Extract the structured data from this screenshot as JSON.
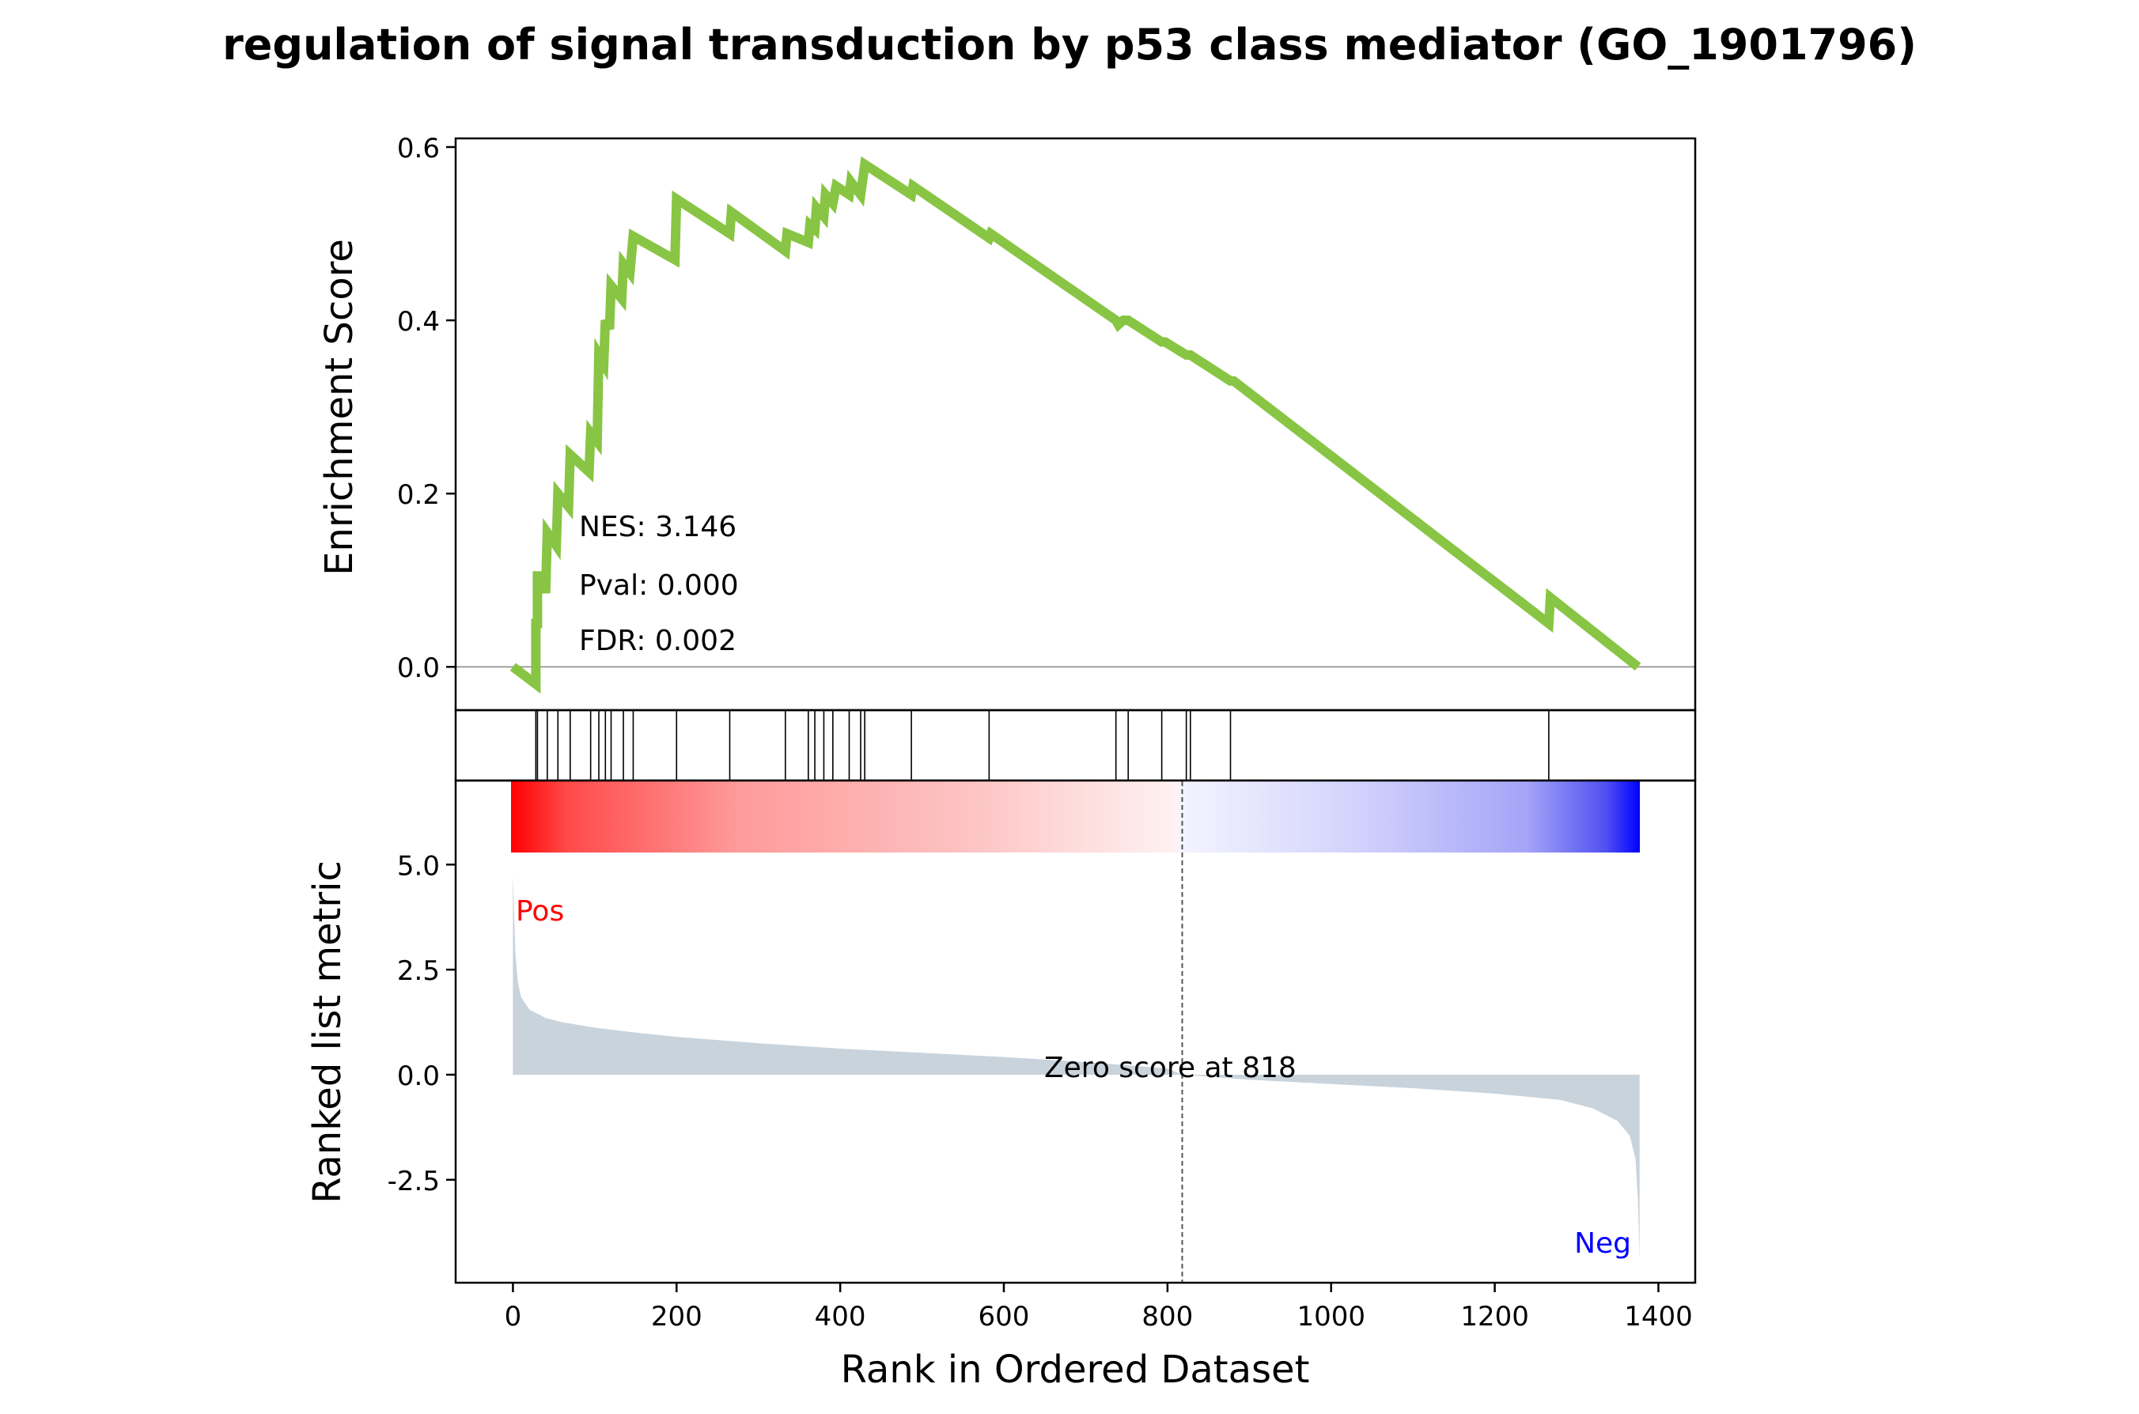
{
  "title": "regulation of signal transduction by p53 class mediator (GO_1901796)",
  "colors": {
    "es_line": "#88c544",
    "metric_fill": "#c8d3dc",
    "pos_label": "#ff0000",
    "neg_label": "#0000ff",
    "heat_pos": "#ff0000",
    "heat_neg": "#0000ff",
    "zero_line": "#a0a0a0"
  },
  "chart_data": [
    {
      "type": "line",
      "ylabel": "Enrichment Score",
      "xlim": [
        -70,
        1445
      ],
      "ylim": [
        -0.05,
        0.61
      ],
      "yticks": [
        0.0,
        0.2,
        0.4,
        0.6
      ],
      "ytick_labels": [
        "0.0",
        "0.2",
        "0.4",
        "0.6"
      ],
      "annotations": [
        "NES: 3.146",
        "Pval: 0.000",
        "FDR: 0.002"
      ],
      "series": [
        {
          "points": [
            [
              0,
              0.0
            ],
            [
              28,
              -0.02
            ],
            [
              28,
              0.05
            ],
            [
              30,
              0.05
            ],
            [
              30,
              0.105
            ],
            [
              38,
              0.105
            ],
            [
              40,
              0.085
            ],
            [
              42,
              0.155
            ],
            [
              53,
              0.14
            ],
            [
              55,
              0.2
            ],
            [
              68,
              0.185
            ],
            [
              70,
              0.245
            ],
            [
              93,
              0.225
            ],
            [
              95,
              0.27
            ],
            [
              103,
              0.26
            ],
            [
              105,
              0.36
            ],
            [
              111,
              0.35
            ],
            [
              113,
              0.4
            ],
            [
              118,
              0.39
            ],
            [
              120,
              0.44
            ],
            [
              133,
              0.425
            ],
            [
              135,
              0.465
            ],
            [
              143,
              0.455
            ],
            [
              147,
              0.497
            ],
            [
              198,
              0.47
            ],
            [
              200,
              0.54
            ],
            [
              265,
              0.5
            ],
            [
              267,
              0.525
            ],
            [
              333,
              0.48
            ],
            [
              335,
              0.5
            ],
            [
              361,
              0.49
            ],
            [
              363,
              0.51
            ],
            [
              369,
              0.505
            ],
            [
              371,
              0.53
            ],
            [
              380,
              0.52
            ],
            [
              382,
              0.545
            ],
            [
              391,
              0.535
            ],
            [
              395,
              0.555
            ],
            [
              411,
              0.545
            ],
            [
              413,
              0.56
            ],
            [
              425,
              0.545
            ],
            [
              430,
              0.58
            ],
            [
              487,
              0.545
            ],
            [
              489,
              0.555
            ],
            [
              582,
              0.495
            ],
            [
              584,
              0.5
            ],
            [
              737,
              0.4
            ],
            [
              740,
              0.395
            ],
            [
              746,
              0.4
            ],
            [
              752,
              0.4
            ],
            [
              793,
              0.375
            ],
            [
              797,
              0.375
            ],
            [
              823,
              0.36
            ],
            [
              828,
              0.36
            ],
            [
              877,
              0.33
            ],
            [
              881,
              0.33
            ],
            [
              1266,
              0.05
            ],
            [
              1268,
              0.08
            ],
            [
              1375,
              0.0
            ]
          ]
        }
      ]
    },
    {
      "type": "scatter",
      "description_of_marks": "gene set hit positions",
      "x": [
        28,
        30,
        42,
        55,
        70,
        95,
        105,
        113,
        120,
        135,
        147,
        200,
        265,
        333,
        361,
        369,
        380,
        391,
        411,
        425,
        430,
        487,
        582,
        737,
        752,
        793,
        823,
        828,
        877,
        1266
      ]
    },
    {
      "type": "area",
      "ylabel": "Ranked list metric",
      "xlabel": "Rank in Ordered Dataset",
      "xlim": [
        -70,
        1445
      ],
      "ylim": [
        -4.95,
        7.0
      ],
      "yticks": [
        -2.5,
        0.0,
        2.5,
        5.0
      ],
      "ytick_labels": [
        "-2.5",
        "0.0",
        "2.5",
        "5.0"
      ],
      "xticks": [
        0,
        200,
        400,
        600,
        800,
        1000,
        1200,
        1400
      ],
      "xtick_labels": [
        "0",
        "200",
        "400",
        "600",
        "800",
        "1000",
        "1200",
        "1400"
      ],
      "zero_score_rank": 818,
      "annotations": {
        "pos": "Pos",
        "neg": "Neg",
        "zero": "Zero score at 818"
      },
      "series": [
        {
          "points": [
            [
              0,
              4.75
            ],
            [
              3,
              2.9
            ],
            [
              6,
              2.2
            ],
            [
              10,
              1.85
            ],
            [
              20,
              1.55
            ],
            [
              40,
              1.35
            ],
            [
              60,
              1.25
            ],
            [
              100,
              1.12
            ],
            [
              150,
              1.0
            ],
            [
              200,
              0.9
            ],
            [
              300,
              0.75
            ],
            [
              400,
              0.62
            ],
            [
              500,
              0.52
            ],
            [
              600,
              0.42
            ],
            [
              700,
              0.3
            ],
            [
              800,
              0.15
            ],
            [
              818,
              0.0
            ],
            [
              900,
              -0.12
            ],
            [
              1000,
              -0.22
            ],
            [
              1100,
              -0.32
            ],
            [
              1200,
              -0.45
            ],
            [
              1280,
              -0.6
            ],
            [
              1320,
              -0.8
            ],
            [
              1350,
              -1.1
            ],
            [
              1365,
              -1.45
            ],
            [
              1372,
              -2.0
            ],
            [
              1375,
              -3.0
            ],
            [
              1377,
              -4.4
            ]
          ]
        }
      ]
    }
  ]
}
